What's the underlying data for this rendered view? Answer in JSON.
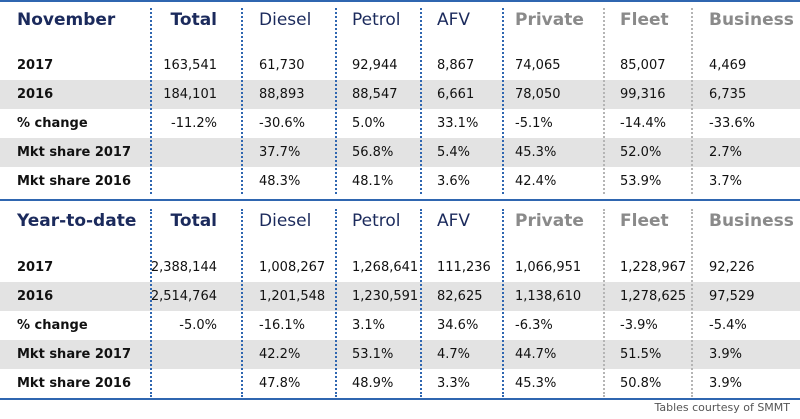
{
  "nov": {
    "headers": {
      "title": "November",
      "total": "Total",
      "diesel": "Diesel",
      "petrol": "Petrol",
      "afv": "AFV",
      "private": "Private",
      "fleet": "Fleet",
      "business": "Business"
    },
    "rows": [
      {
        "label": "2017",
        "total": "163,541",
        "diesel": "61,730",
        "petrol": "92,944",
        "afv": "8,867",
        "private": "74,065",
        "fleet": "85,007",
        "business": "4,469"
      },
      {
        "label": "2016",
        "total": "184,101",
        "diesel": "88,893",
        "petrol": "88,547",
        "afv": "6,661",
        "private": "78,050",
        "fleet": "99,316",
        "business": "6,735"
      },
      {
        "label": "% change",
        "total": "-11.2%",
        "diesel": "-30.6%",
        "petrol": "5.0%",
        "afv": "33.1%",
        "private": "-5.1%",
        "fleet": "-14.4%",
        "business": "-33.6%"
      },
      {
        "label": "Mkt share 2017",
        "total": "",
        "diesel": "37.7%",
        "petrol": "56.8%",
        "afv": "5.4%",
        "private": "45.3%",
        "fleet": "52.0%",
        "business": "2.7%"
      },
      {
        "label": "Mkt share 2016",
        "total": "",
        "diesel": "48.3%",
        "petrol": "48.1%",
        "afv": "3.6%",
        "private": "42.4%",
        "fleet": "53.9%",
        "business": "3.7%"
      }
    ]
  },
  "ytd": {
    "headers": {
      "title": "Year-to-date",
      "total": "Total",
      "diesel": "Diesel",
      "petrol": "Petrol",
      "afv": "AFV",
      "private": "Private",
      "fleet": "Fleet",
      "business": "Business"
    },
    "rows": [
      {
        "label": "2017",
        "total": "2,388,144",
        "diesel": "1,008,267",
        "petrol": "1,268,641",
        "afv": "111,236",
        "private": "1,066,951",
        "fleet": "1,228,967",
        "business": "92,226"
      },
      {
        "label": "2016",
        "total": "2,514,764",
        "diesel": "1,201,548",
        "petrol": "1,230,591",
        "afv": "82,625",
        "private": "1,138,610",
        "fleet": "1,278,625",
        "business": "97,529"
      },
      {
        "label": "% change",
        "total": "-5.0%",
        "diesel": "-16.1%",
        "petrol": "3.1%",
        "afv": "34.6%",
        "private": "-6.3%",
        "fleet": "-3.9%",
        "business": "-5.4%"
      },
      {
        "label": "Mkt share 2017",
        "total": "",
        "diesel": "42.2%",
        "petrol": "53.1%",
        "afv": "4.7%",
        "private": "44.7%",
        "fleet": "51.5%",
        "business": "3.9%"
      },
      {
        "label": "Mkt share 2016",
        "total": "",
        "diesel": "47.8%",
        "petrol": "48.9%",
        "afv": "3.3%",
        "private": "45.3%",
        "fleet": "50.8%",
        "business": "3.9%"
      }
    ]
  },
  "footer": "Tables courtesy of SMMT",
  "colors": {
    "accent_blue": "#2f66b0",
    "title_navy": "#1b2a5c",
    "header_grey": "#8a8a8a",
    "row_shade": "#e3e3e3"
  }
}
